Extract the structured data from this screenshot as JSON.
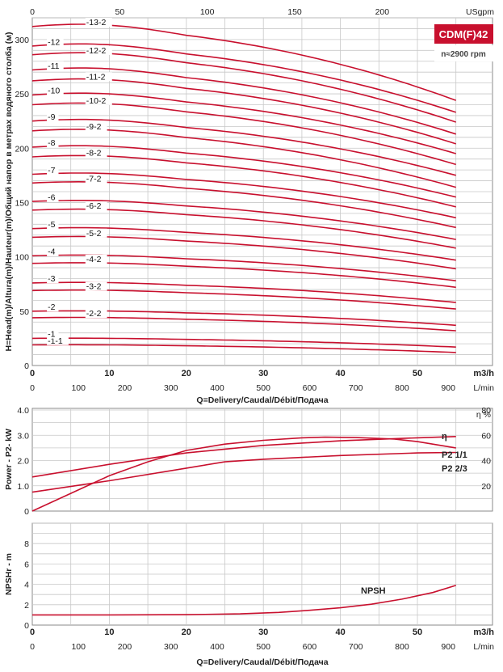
{
  "model": {
    "label": "CDM(F)42",
    "speed": "n≈2900 rpm",
    "accent": "#c8102e"
  },
  "chart_data": [
    {
      "type": "line",
      "name": "head-curves",
      "xlabel": "Q=Delivery/Caudal/Débit/Подача",
      "ylabel": "H=Head(m)/Altura(m)/Hauteur(m)/Общий напор в метрах водяного столба (м)",
      "x_unit": "m3/h",
      "x2_unit": "L/min",
      "x_top_unit": "USgpm",
      "xlim": [
        0,
        55
      ],
      "ylim": [
        0,
        320
      ],
      "x_ticks": [
        0,
        10,
        20,
        30,
        40,
        50
      ],
      "x_ticks_labels": [
        "0",
        "10",
        "20",
        "30",
        "40",
        "50"
      ],
      "lmin_ticks": [
        "0",
        "100",
        "200",
        "300",
        "400",
        "500",
        "600",
        "700",
        "800",
        "900"
      ],
      "usgpm_ticks": [
        "0",
        "50",
        "100",
        "150",
        "200"
      ],
      "y_ticks": [
        "0",
        "50",
        "100",
        "150",
        "200",
        "250",
        "300"
      ],
      "series": [
        {
          "name": "-1-1",
          "values": [
            [
              0,
              19
            ],
            [
              55,
              12
            ]
          ]
        },
        {
          "name": "-1",
          "values": [
            [
              0,
              25
            ],
            [
              55,
              17
            ]
          ]
        },
        {
          "name": "-2-2",
          "values": [
            [
              0,
              44
            ],
            [
              55,
              32
            ]
          ]
        },
        {
          "name": "-2",
          "values": [
            [
              0,
              50
            ],
            [
              55,
              37
            ]
          ]
        },
        {
          "name": "-3-2",
          "values": [
            [
              0,
              69
            ],
            [
              55,
              52
            ]
          ]
        },
        {
          "name": "-3",
          "values": [
            [
              0,
              76
            ],
            [
              55,
              58
            ]
          ]
        },
        {
          "name": "-4-2",
          "values": [
            [
              0,
              94
            ],
            [
              55,
              72
            ]
          ]
        },
        {
          "name": "-4",
          "values": [
            [
              0,
              101
            ],
            [
              55,
              78
            ]
          ]
        },
        {
          "name": "-5-2",
          "values": [
            [
              0,
              118
            ],
            [
              55,
              89
            ]
          ]
        },
        {
          "name": "-5",
          "values": [
            [
              0,
              126
            ],
            [
              55,
              97
            ]
          ]
        },
        {
          "name": "-6-2",
          "values": [
            [
              0,
              143
            ],
            [
              55,
              108
            ]
          ]
        },
        {
          "name": "-6",
          "values": [
            [
              0,
              151
            ],
            [
              55,
              116
            ]
          ]
        },
        {
          "name": "-7-2",
          "values": [
            [
              0,
              168
            ],
            [
              55,
              127
            ]
          ]
        },
        {
          "name": "-7",
          "values": [
            [
              0,
              176
            ],
            [
              55,
              136
            ]
          ]
        },
        {
          "name": "-8-2",
          "values": [
            [
              0,
              192
            ],
            [
              55,
              146
            ]
          ]
        },
        {
          "name": "-8",
          "values": [
            [
              0,
              201
            ],
            [
              55,
              155
            ]
          ]
        },
        {
          "name": "-9-2",
          "values": [
            [
              0,
              216
            ],
            [
              55,
              164
            ]
          ]
        },
        {
          "name": "-9",
          "values": [
            [
              0,
              225
            ],
            [
              55,
              175
            ]
          ]
        },
        {
          "name": "-10-2",
          "values": [
            [
              0,
              240
            ],
            [
              55,
              185
            ]
          ]
        },
        {
          "name": "-10",
          "values": [
            [
              0,
              249
            ],
            [
              55,
              195
            ]
          ]
        },
        {
          "name": "-11-2",
          "values": [
            [
              0,
              262
            ],
            [
              55,
              204
            ]
          ]
        },
        {
          "name": "-11",
          "values": [
            [
              0,
              272
            ],
            [
              55,
              213
            ]
          ]
        },
        {
          "name": "-12-2",
          "values": [
            [
              0,
              286
            ],
            [
              55,
              224
            ]
          ]
        },
        {
          "name": "-12",
          "values": [
            [
              0,
              294
            ],
            [
              55,
              233
            ]
          ]
        },
        {
          "name": "-13-2",
          "values": [
            [
              0,
              312
            ],
            [
              55,
              244
            ]
          ]
        }
      ],
      "curve_shape": {
        "peak_x": 10,
        "x_end": 55,
        "bend": 0.9
      }
    },
    {
      "type": "line",
      "name": "power-efficiency",
      "ylabel": "Power - P2- kW",
      "y2_label": "η %",
      "xlim": [
        0,
        55
      ],
      "ylim": [
        0,
        4.0
      ],
      "y_ticks": [
        "0",
        "1.0",
        "2.0",
        "3.0",
        "4.0"
      ],
      "y2_ticks": [
        "20",
        "40",
        "60",
        "80"
      ],
      "y2lim": [
        0,
        80
      ],
      "series": [
        {
          "name": "η",
          "axis": "right",
          "values": [
            [
              0,
              0
            ],
            [
              5,
              14
            ],
            [
              10,
              28
            ],
            [
              15,
              39
            ],
            [
              20,
              48
            ],
            [
              25,
              53
            ],
            [
              30,
              56
            ],
            [
              35,
              58
            ],
            [
              38,
              58.5
            ],
            [
              42,
              58.2
            ],
            [
              47,
              57
            ],
            [
              50,
              55
            ],
            [
              55,
              50
            ]
          ]
        },
        {
          "name": "P2 1/1",
          "axis": "left",
          "values": [
            [
              0,
              1.35
            ],
            [
              10,
              1.85
            ],
            [
              20,
              2.3
            ],
            [
              25,
              2.45
            ],
            [
              30,
              2.6
            ],
            [
              40,
              2.78
            ],
            [
              50,
              2.9
            ],
            [
              55,
              2.95
            ]
          ]
        },
        {
          "name": "P2 2/3",
          "axis": "left",
          "values": [
            [
              0,
              0.75
            ],
            [
              10,
              1.2
            ],
            [
              20,
              1.7
            ],
            [
              25,
              1.95
            ],
            [
              30,
              2.05
            ],
            [
              40,
              2.2
            ],
            [
              50,
              2.3
            ],
            [
              55,
              2.32
            ]
          ]
        }
      ]
    },
    {
      "type": "line",
      "name": "npsh",
      "ylabel": "NPSHr - m",
      "xlabel": "Q=Delivery/Caudal/Débit/Подача",
      "x_unit": "m3/h",
      "x2_unit": "L/min",
      "xlim": [
        0,
        55
      ],
      "ylim": [
        0,
        10
      ],
      "y_ticks": [
        "0",
        "2",
        "4",
        "6",
        "8"
      ],
      "x_ticks_labels": [
        "0",
        "10",
        "20",
        "30",
        "40",
        "50"
      ],
      "lmin_ticks": [
        "0",
        "100",
        "200",
        "300",
        "400",
        "500",
        "600",
        "700",
        "800",
        "900"
      ],
      "series": [
        {
          "name": "NPSH",
          "values": [
            [
              0,
              1.0
            ],
            [
              10,
              1.0
            ],
            [
              20,
              1.02
            ],
            [
              27,
              1.1
            ],
            [
              32,
              1.25
            ],
            [
              36,
              1.45
            ],
            [
              40,
              1.7
            ],
            [
              44,
              2.05
            ],
            [
              48,
              2.55
            ],
            [
              52,
              3.2
            ],
            [
              55,
              3.9
            ]
          ]
        }
      ]
    }
  ]
}
